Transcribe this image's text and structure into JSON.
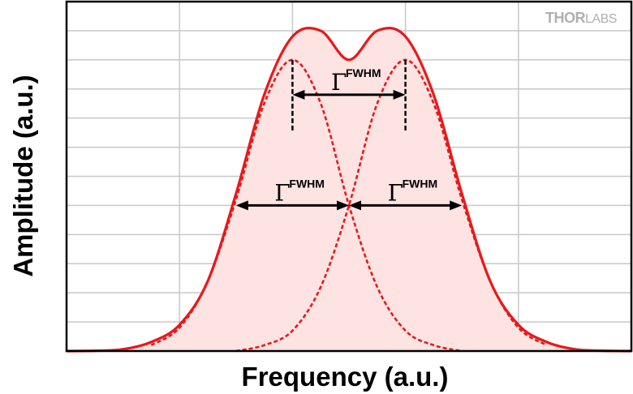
{
  "chart_data": {
    "type": "line",
    "xlabel": "Frequency (a.u.)",
    "ylabel": "Amplitude (a.u.)",
    "xlim": [
      0,
      10
    ],
    "ylim": [
      0,
      1.2
    ],
    "grid": true,
    "series": [
      {
        "style": "solid-filled",
        "x": [
          0,
          0.5,
          1.0,
          1.5,
          2.0,
          2.5,
          3.0,
          3.5,
          4.0,
          4.5,
          5.0,
          5.5,
          6.0,
          6.5,
          7.0,
          7.5,
          8.0,
          8.5,
          9.0,
          9.5,
          10.0
        ],
        "y": [
          0.0,
          0.001,
          0.006,
          0.031,
          0.09,
          0.24,
          0.54,
          0.88,
          1.08,
          1.1,
          1.0,
          1.1,
          1.08,
          0.88,
          0.54,
          0.24,
          0.09,
          0.031,
          0.006,
          0.001,
          0.0
        ]
      },
      {
        "style": "dashed",
        "x": [
          1.5,
          2.0,
          2.5,
          3.0,
          3.5,
          4.0,
          4.5,
          5.0,
          5.5,
          6.0,
          6.5,
          7.0
        ],
        "y": [
          0.02,
          0.08,
          0.24,
          0.52,
          0.85,
          1.0,
          0.85,
          0.5,
          0.22,
          0.07,
          0.02,
          0.0
        ]
      },
      {
        "style": "dashed",
        "x": [
          3.0,
          3.5,
          4.0,
          4.5,
          5.0,
          5.5,
          6.0,
          6.5,
          7.0,
          7.5,
          8.0,
          8.5
        ],
        "y": [
          0.0,
          0.02,
          0.07,
          0.22,
          0.5,
          0.85,
          1.0,
          0.85,
          0.52,
          0.24,
          0.08,
          0.02
        ]
      }
    ],
    "annotations": [
      {
        "label": "Γ",
        "superscript": "FWHM",
        "from_x": 4.0,
        "to_x": 6.0,
        "y": 0.88
      },
      {
        "label": "Γ",
        "superscript": "FWHM",
        "from_x": 3.0,
        "to_x": 5.0,
        "y": 0.5
      },
      {
        "label": "Γ",
        "superscript": "FWHM",
        "from_x": 5.0,
        "to_x": 7.0,
        "y": 0.5
      }
    ]
  },
  "logo": {
    "part1": "THOR",
    "part2": "LABS",
    "color": "#b0b0b0"
  },
  "colors": {
    "curve": "#e8191a",
    "fill": "#fde3e2",
    "grid": "#c8c8c8"
  }
}
